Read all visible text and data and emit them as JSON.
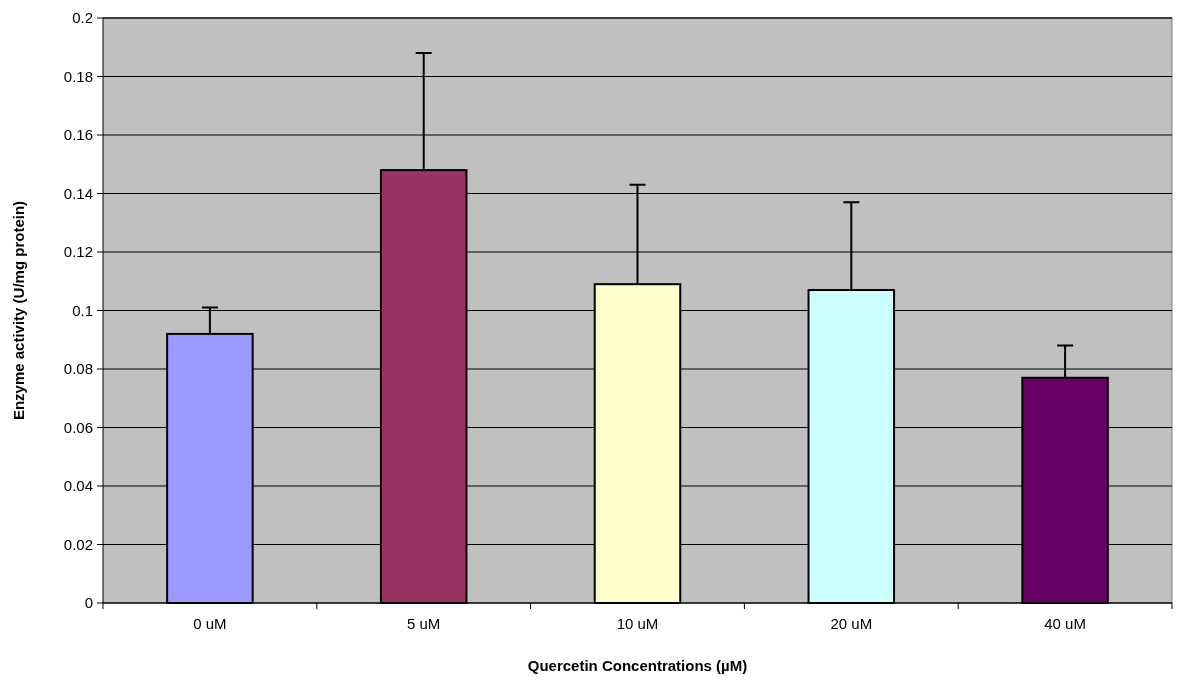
{
  "chart_data": {
    "type": "bar",
    "xlabel": "Quercetin Concentrations (µM)",
    "ylabel": "Enzyme activity (U/mg protein)",
    "categories": [
      "0 uM",
      "5 uM",
      "10 uM",
      "20 uM",
      "40 uM"
    ],
    "values": [
      0.092,
      0.148,
      0.109,
      0.107,
      0.077
    ],
    "colors": [
      "#9999ff",
      "#993366",
      "#ffffcc",
      "#ccffff",
      "#660066"
    ],
    "errors": [
      [
        0.092,
        0.101
      ],
      [
        0.148,
        0.188
      ],
      [
        0.109,
        0.143
      ],
      [
        0.107,
        0.137
      ],
      [
        0.077,
        0.088
      ]
    ],
    "ylim": [
      0,
      0.2
    ],
    "yticks": [
      0,
      0.02,
      0.04,
      0.06,
      0.08,
      0.1,
      0.12,
      0.14,
      0.16,
      0.18,
      0.2
    ],
    "grid": "y"
  }
}
